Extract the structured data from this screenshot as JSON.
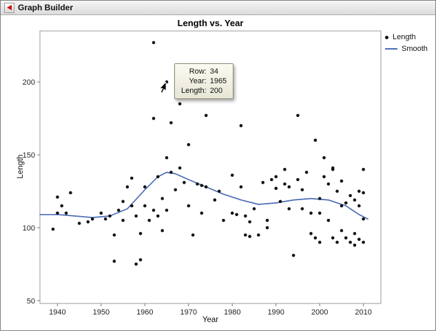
{
  "window": {
    "title": "Graph Builder"
  },
  "tooltip": {
    "rows": [
      {
        "label": "Row:",
        "value": "34"
      },
      {
        "label": "Year:",
        "value": "1965"
      },
      {
        "label": "Length:",
        "value": "200"
      }
    ]
  },
  "chart_data": {
    "type": "scatter",
    "title": "Length vs. Year",
    "xlabel": "Year",
    "ylabel": "Length",
    "xlim": [
      1936,
      2014
    ],
    "ylim": [
      48,
      235
    ],
    "x_ticks": [
      1940,
      1950,
      1960,
      1970,
      1980,
      1990,
      2000,
      2010
    ],
    "y_ticks": [
      50,
      100,
      150,
      200
    ],
    "grid": false,
    "legend_position": "right",
    "point_color": "#111111",
    "smooth_color": "#4a6cb3",
    "legend": [
      {
        "label": "Length",
        "type": "point"
      },
      {
        "label": "Smooth",
        "type": "line"
      }
    ],
    "series": [
      {
        "name": "Length",
        "type": "scatter"
      },
      {
        "name": "Smooth",
        "type": "line"
      }
    ],
    "points": [
      [
        1939,
        99
      ],
      [
        1940,
        110
      ],
      [
        1940,
        121
      ],
      [
        1941,
        115
      ],
      [
        1942,
        110
      ],
      [
        1943,
        124
      ],
      [
        1945,
        103
      ],
      [
        1947,
        104
      ],
      [
        1948,
        106
      ],
      [
        1950,
        110
      ],
      [
        1951,
        106
      ],
      [
        1952,
        108
      ],
      [
        1953,
        77
      ],
      [
        1953,
        95
      ],
      [
        1954,
        112
      ],
      [
        1955,
        118
      ],
      [
        1955,
        105
      ],
      [
        1956,
        128
      ],
      [
        1957,
        134
      ],
      [
        1957,
        115
      ],
      [
        1958,
        108
      ],
      [
        1958,
        75
      ],
      [
        1959,
        96
      ],
      [
        1959,
        78
      ],
      [
        1960,
        128
      ],
      [
        1960,
        115
      ],
      [
        1961,
        105
      ],
      [
        1962,
        227
      ],
      [
        1962,
        175
      ],
      [
        1962,
        112
      ],
      [
        1963,
        135
      ],
      [
        1963,
        108
      ],
      [
        1964,
        120
      ],
      [
        1964,
        98
      ],
      [
        1965,
        200
      ],
      [
        1965,
        148
      ],
      [
        1965,
        112
      ],
      [
        1966,
        172
      ],
      [
        1966,
        138
      ],
      [
        1967,
        126
      ],
      [
        1968,
        185
      ],
      [
        1968,
        141
      ],
      [
        1969,
        131
      ],
      [
        1970,
        157
      ],
      [
        1970,
        115
      ],
      [
        1971,
        95
      ],
      [
        1972,
        130
      ],
      [
        1973,
        129
      ],
      [
        1973,
        110
      ],
      [
        1974,
        177
      ],
      [
        1974,
        128
      ],
      [
        1976,
        119
      ],
      [
        1977,
        125
      ],
      [
        1978,
        105
      ],
      [
        1980,
        136
      ],
      [
        1980,
        110
      ],
      [
        1981,
        109
      ],
      [
        1982,
        170
      ],
      [
        1982,
        128
      ],
      [
        1983,
        95
      ],
      [
        1983,
        108
      ],
      [
        1984,
        104
      ],
      [
        1984,
        94
      ],
      [
        1985,
        113
      ],
      [
        1986,
        95
      ],
      [
        1987,
        131
      ],
      [
        1988,
        100
      ],
      [
        1988,
        105
      ],
      [
        1989,
        133
      ],
      [
        1990,
        135
      ],
      [
        1990,
        127
      ],
      [
        1991,
        118
      ],
      [
        1992,
        140
      ],
      [
        1992,
        130
      ],
      [
        1993,
        128
      ],
      [
        1993,
        113
      ],
      [
        1994,
        81
      ],
      [
        1995,
        177
      ],
      [
        1995,
        133
      ],
      [
        1996,
        126
      ],
      [
        1996,
        113
      ],
      [
        1997,
        138
      ],
      [
        1998,
        110
      ],
      [
        1998,
        96
      ],
      [
        1999,
        160
      ],
      [
        1999,
        93
      ],
      [
        2000,
        120
      ],
      [
        2000,
        110
      ],
      [
        2000,
        90
      ],
      [
        2001,
        148
      ],
      [
        2001,
        135
      ],
      [
        2002,
        130
      ],
      [
        2002,
        105
      ],
      [
        2003,
        141
      ],
      [
        2003,
        140
      ],
      [
        2003,
        93
      ],
      [
        2004,
        125
      ],
      [
        2004,
        90
      ],
      [
        2005,
        132
      ],
      [
        2005,
        115
      ],
      [
        2005,
        98
      ],
      [
        2006,
        117
      ],
      [
        2006,
        93
      ],
      [
        2007,
        122
      ],
      [
        2007,
        90
      ],
      [
        2008,
        119
      ],
      [
        2008,
        96
      ],
      [
        2008,
        88
      ],
      [
        2009,
        125
      ],
      [
        2009,
        115
      ],
      [
        2009,
        92
      ],
      [
        2010,
        140
      ],
      [
        2010,
        124
      ],
      [
        2010,
        106
      ],
      [
        2010,
        90
      ]
    ],
    "smooth": [
      [
        1936,
        109
      ],
      [
        1940,
        109
      ],
      [
        1944,
        108
      ],
      [
        1948,
        107
      ],
      [
        1952,
        108
      ],
      [
        1956,
        113
      ],
      [
        1960,
        126
      ],
      [
        1963,
        135
      ],
      [
        1965,
        138
      ],
      [
        1967,
        137
      ],
      [
        1970,
        133
      ],
      [
        1974,
        128
      ],
      [
        1978,
        123
      ],
      [
        1982,
        119
      ],
      [
        1986,
        116
      ],
      [
        1990,
        117
      ],
      [
        1994,
        119
      ],
      [
        1998,
        120
      ],
      [
        2002,
        119
      ],
      [
        2006,
        115
      ],
      [
        2009,
        109
      ],
      [
        2011,
        106
      ]
    ]
  }
}
